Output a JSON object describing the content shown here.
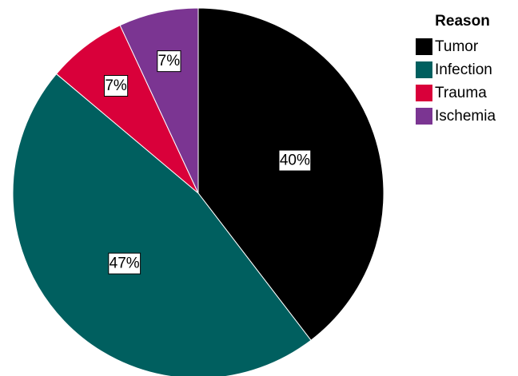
{
  "chart_data": {
    "type": "pie",
    "legend_title": "Reason",
    "legend_position": "top-right",
    "slices": [
      {
        "label": "Tumor",
        "value": 40,
        "display": "40%",
        "color": "#000000"
      },
      {
        "label": "Infection",
        "value": 47,
        "display": "47%",
        "color": "#005f5f"
      },
      {
        "label": "Trauma",
        "value": 7,
        "display": "7%",
        "color": "#d9003a"
      },
      {
        "label": "Ischemia",
        "value": 7,
        "display": "7%",
        "color": "#7b3592"
      }
    ]
  }
}
